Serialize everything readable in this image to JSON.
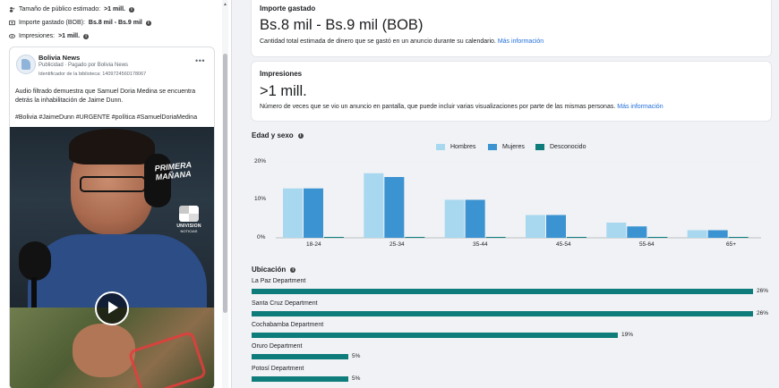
{
  "left_panel": {
    "audience_label": "Tamaño de público estimado:",
    "audience_value": ">1 mill.",
    "spend_label": "Importe gastado (BOB):",
    "spend_value": "Bs.8 mil - Bs.9 mil",
    "impressions_label": "Impresiones:",
    "impressions_value": ">1 mill.",
    "ad": {
      "page_name": "Bolivia News",
      "sponsored": "Publicidad · Pagado por Bolivia News",
      "library_id": "Identificador de la biblioteca: 1409724560178067",
      "more": "•••",
      "body": "Audio filtrado demuestra que Samuel Doria Medina se encuentra detrás la inhabilitación de Jaime Dunn.",
      "hashtags": "#Bolivia #JaimeDunn #URGENTE #política #SamuelDoriaMedina",
      "video_banner": "PRIMERA MAÑANA",
      "video_logo": "UNIVISION",
      "video_logo_sub": "NOTICIAS"
    }
  },
  "spend_card": {
    "title": "Importe gastado",
    "value": "Bs.8 mil - Bs.9 mil (BOB)",
    "description": "Cantidad total estimada de dinero que se gastó en un anuncio durante su calendario.",
    "link": "Más información"
  },
  "impressions_card": {
    "title": "Impresiones",
    "value": ">1 mill.",
    "description": "Número de veces que se vio un anuncio en pantalla, que puede incluir varias visualizaciones por parte de las mismas personas.",
    "link": "Más información"
  },
  "age_gender": {
    "title": "Edad y sexo",
    "legend": [
      "Hombres",
      "Mujeres",
      "Desconocido"
    ],
    "colors": [
      "#a8d8f0",
      "#3b93d1",
      "#0e7c7b"
    ]
  },
  "chart_data": {
    "type": "bar",
    "categories": [
      "18-24",
      "25-34",
      "35-44",
      "45-54",
      "55-64",
      "65+"
    ],
    "series": [
      {
        "name": "Hombres",
        "values": [
          13,
          17,
          10,
          6,
          4,
          2
        ]
      },
      {
        "name": "Mujeres",
        "values": [
          13,
          16,
          10,
          6,
          3,
          2
        ]
      },
      {
        "name": "Desconocido",
        "values": [
          0.2,
          0.2,
          0.2,
          0.1,
          0.1,
          0.1
        ]
      }
    ],
    "yticks": [
      "0%",
      "10%",
      "20%"
    ],
    "ylim": [
      0,
      20
    ],
    "legend_position": "top-center",
    "grid": false
  },
  "location": {
    "title": "Ubicación",
    "items": [
      {
        "name": "La Paz Department",
        "value": 26,
        "label": "26%"
      },
      {
        "name": "Santa Cruz Department",
        "value": 26,
        "label": "26%"
      },
      {
        "name": "Cochabamba Department",
        "value": 19,
        "label": "19%"
      },
      {
        "name": "Oruro Department",
        "value": 5,
        "label": "5%"
      },
      {
        "name": "Potosí Department",
        "value": 5,
        "label": "5%"
      }
    ],
    "bar_color": "#0e7c7b"
  }
}
